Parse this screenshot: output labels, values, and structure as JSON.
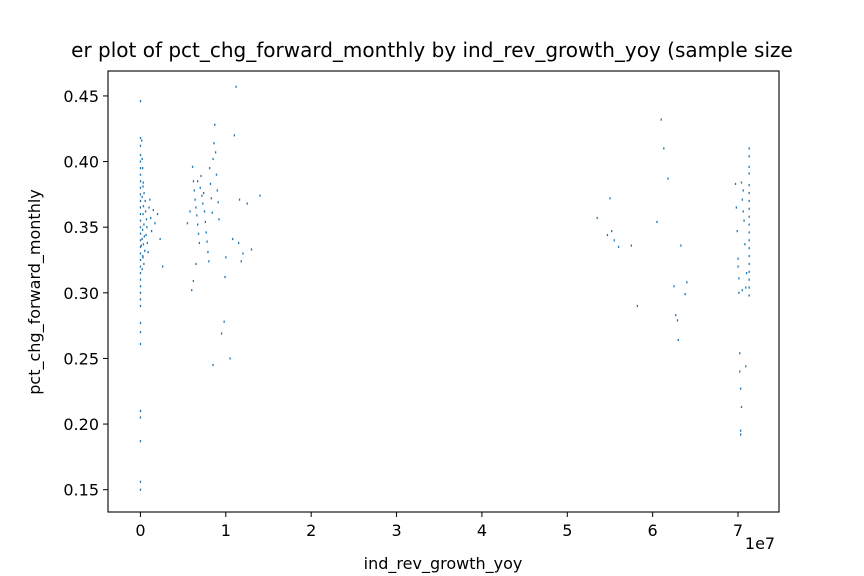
{
  "chart_data": {
    "type": "scatter",
    "title": "er plot of pct_chg_forward_monthly by ind_rev_growth_yoy (sample size",
    "xlabel": "ind_rev_growth_yoy",
    "ylabel": "pct_chg_forward_monthly",
    "x_offset_label": "1e7",
    "xlim": [
      -3800000,
      74800000
    ],
    "ylim": [
      0.133,
      0.469
    ],
    "xticks": [
      0,
      10000000,
      20000000,
      30000000,
      40000000,
      50000000,
      60000000,
      70000000
    ],
    "xtick_labels": [
      "0",
      "1",
      "2",
      "3",
      "4",
      "5",
      "6",
      "7"
    ],
    "yticks": [
      0.15,
      0.2,
      0.25,
      0.3,
      0.35,
      0.4,
      0.45
    ],
    "ytick_labels": [
      "0.15",
      "0.20",
      "0.25",
      "0.30",
      "0.35",
      "0.40",
      "0.45"
    ],
    "grid": false,
    "marker_color": "#1f77b4",
    "series": [
      {
        "points": [
          [
            0,
            0.446
          ],
          [
            0,
            0.418
          ],
          [
            0,
            0.412
          ],
          [
            0,
            0.405
          ],
          [
            0,
            0.4
          ],
          [
            0,
            0.395
          ],
          [
            0,
            0.39
          ],
          [
            0,
            0.385
          ],
          [
            0,
            0.38
          ],
          [
            0,
            0.375
          ],
          [
            0,
            0.37
          ],
          [
            0,
            0.365
          ],
          [
            0,
            0.36
          ],
          [
            0,
            0.355
          ],
          [
            0,
            0.35
          ],
          [
            0,
            0.345
          ],
          [
            0,
            0.34
          ],
          [
            0,
            0.335
          ],
          [
            0,
            0.33
          ],
          [
            0,
            0.325
          ],
          [
            0,
            0.32
          ],
          [
            0,
            0.315
          ],
          [
            0,
            0.31
          ],
          [
            0,
            0.305
          ],
          [
            0,
            0.3
          ],
          [
            0,
            0.295
          ],
          [
            0,
            0.29
          ],
          [
            0,
            0.277
          ],
          [
            0,
            0.27
          ],
          [
            0,
            0.261
          ],
          [
            0,
            0.21
          ],
          [
            0,
            0.205
          ],
          [
            0,
            0.187
          ],
          [
            0,
            0.156
          ],
          [
            0,
            0.15
          ],
          [
            150000,
            0.416
          ],
          [
            200000,
            0.402
          ],
          [
            250000,
            0.395
          ],
          [
            300000,
            0.381
          ],
          [
            200000,
            0.373
          ],
          [
            350000,
            0.366
          ],
          [
            300000,
            0.36
          ],
          [
            400000,
            0.352
          ],
          [
            250000,
            0.348
          ],
          [
            450000,
            0.343
          ],
          [
            350000,
            0.337
          ],
          [
            500000,
            0.332
          ],
          [
            300000,
            0.327
          ],
          [
            400000,
            0.322
          ],
          [
            200000,
            0.318
          ],
          [
            550000,
            0.37
          ],
          [
            600000,
            0.362
          ],
          [
            700000,
            0.356
          ],
          [
            750000,
            0.35
          ],
          [
            650000,
            0.344
          ],
          [
            800000,
            0.338
          ],
          [
            900000,
            0.331
          ],
          [
            1000000,
            0.365
          ],
          [
            1100000,
            0.371
          ],
          [
            1200000,
            0.357
          ],
          [
            1300000,
            0.347
          ],
          [
            1500000,
            0.363
          ],
          [
            1700000,
            0.353
          ],
          [
            2000000,
            0.36
          ],
          [
            2300000,
            0.341
          ],
          [
            2600000,
            0.32
          ],
          [
            100000,
            0.336
          ],
          [
            180000,
            0.341
          ],
          [
            260000,
            0.328
          ],
          [
            320000,
            0.384
          ],
          [
            420000,
            0.376
          ],
          [
            5500000,
            0.353
          ],
          [
            5800000,
            0.362
          ],
          [
            6000000,
            0.302
          ],
          [
            6100000,
            0.396
          ],
          [
            6200000,
            0.385
          ],
          [
            6300000,
            0.378
          ],
          [
            6400000,
            0.371
          ],
          [
            6500000,
            0.365
          ],
          [
            6600000,
            0.359
          ],
          [
            6700000,
            0.352
          ],
          [
            6800000,
            0.345
          ],
          [
            6900000,
            0.338
          ],
          [
            6200000,
            0.309
          ],
          [
            6500000,
            0.322
          ],
          [
            6700000,
            0.385
          ],
          [
            7000000,
            0.38
          ],
          [
            7100000,
            0.389
          ],
          [
            7200000,
            0.374
          ],
          [
            7300000,
            0.368
          ],
          [
            7400000,
            0.376
          ],
          [
            7500000,
            0.362
          ],
          [
            7600000,
            0.354
          ],
          [
            7700000,
            0.346
          ],
          [
            7800000,
            0.339
          ],
          [
            7900000,
            0.331
          ],
          [
            8000000,
            0.324
          ],
          [
            8100000,
            0.395
          ],
          [
            8200000,
            0.383
          ],
          [
            8300000,
            0.372
          ],
          [
            8400000,
            0.361
          ],
          [
            8500000,
            0.402
          ],
          [
            8600000,
            0.414
          ],
          [
            8700000,
            0.428
          ],
          [
            8800000,
            0.407
          ],
          [
            8900000,
            0.39
          ],
          [
            9000000,
            0.378
          ],
          [
            9100000,
            0.369
          ],
          [
            9200000,
            0.356
          ],
          [
            8500000,
            0.245
          ],
          [
            9500000,
            0.269
          ],
          [
            9800000,
            0.278
          ],
          [
            9900000,
            0.312
          ],
          [
            10000000,
            0.327
          ],
          [
            10500000,
            0.25
          ],
          [
            11000000,
            0.42
          ],
          [
            11200000,
            0.457
          ],
          [
            11500000,
            0.338
          ],
          [
            11800000,
            0.324
          ],
          [
            12000000,
            0.33
          ],
          [
            12500000,
            0.368
          ],
          [
            13000000,
            0.333
          ],
          [
            14000000,
            0.374
          ],
          [
            11600000,
            0.371
          ],
          [
            10800000,
            0.341
          ],
          [
            53500000,
            0.357
          ],
          [
            54700000,
            0.344
          ],
          [
            55000000,
            0.372
          ],
          [
            55200000,
            0.347
          ],
          [
            55500000,
            0.34
          ],
          [
            56000000,
            0.335
          ],
          [
            57500000,
            0.336
          ],
          [
            58200000,
            0.29
          ],
          [
            60500000,
            0.354
          ],
          [
            61000000,
            0.432
          ],
          [
            61300000,
            0.41
          ],
          [
            61800000,
            0.387
          ],
          [
            62500000,
            0.305
          ],
          [
            62700000,
            0.283
          ],
          [
            62900000,
            0.279
          ],
          [
            63000000,
            0.264
          ],
          [
            63300000,
            0.336
          ],
          [
            63800000,
            0.299
          ],
          [
            64000000,
            0.308
          ],
          [
            69700000,
            0.383
          ],
          [
            69800000,
            0.365
          ],
          [
            69900000,
            0.347
          ],
          [
            70000000,
            0.326
          ],
          [
            70000000,
            0.32
          ],
          [
            70100000,
            0.311
          ],
          [
            70100000,
            0.3
          ],
          [
            70200000,
            0.254
          ],
          [
            70200000,
            0.24
          ],
          [
            70300000,
            0.227
          ],
          [
            70300000,
            0.195
          ],
          [
            70300000,
            0.192
          ],
          [
            70400000,
            0.213
          ],
          [
            70500000,
            0.302
          ],
          [
            70600000,
            0.378
          ],
          [
            70700000,
            0.355
          ],
          [
            70800000,
            0.337
          ],
          [
            70400000,
            0.384
          ],
          [
            70500000,
            0.371
          ],
          [
            70600000,
            0.362
          ],
          [
            70900000,
            0.244
          ],
          [
            70900000,
            0.304
          ],
          [
            71000000,
            0.315
          ],
          [
            71300000,
            0.41
          ],
          [
            71300000,
            0.404
          ],
          [
            71300000,
            0.396
          ],
          [
            71300000,
            0.391
          ],
          [
            71300000,
            0.382
          ],
          [
            71300000,
            0.376
          ],
          [
            71300000,
            0.37
          ],
          [
            71300000,
            0.364
          ],
          [
            71300000,
            0.358
          ],
          [
            71300000,
            0.352
          ],
          [
            71300000,
            0.346
          ],
          [
            71300000,
            0.34
          ],
          [
            71300000,
            0.334
          ],
          [
            71300000,
            0.328
          ],
          [
            71300000,
            0.322
          ],
          [
            71300000,
            0.316
          ],
          [
            71300000,
            0.31
          ],
          [
            71300000,
            0.304
          ],
          [
            71300000,
            0.298
          ]
        ]
      }
    ]
  }
}
